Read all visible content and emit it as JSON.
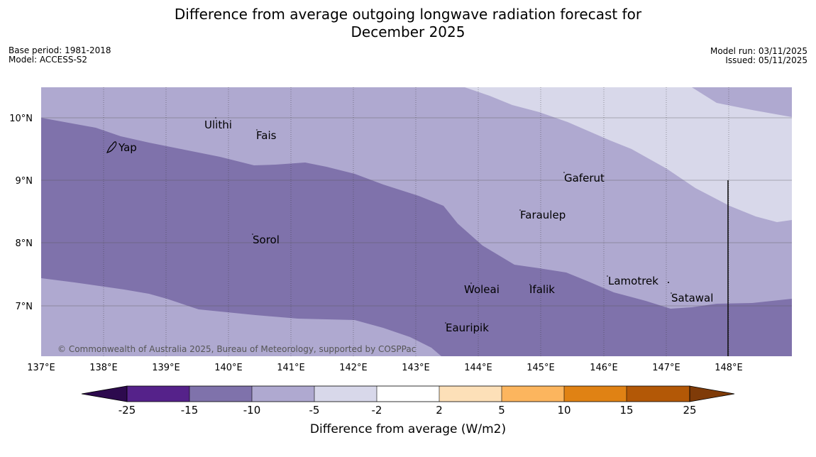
{
  "title_line1": "Difference from average outgoing longwave radiation forecast for",
  "title_line2": "December 2025",
  "base_period": "Base period: 1981-2018",
  "model": "Model: ACCESS-S2",
  "model_run": "Model run: 03/11/2025",
  "issued": "Issued: 05/11/2025",
  "credit": "© Commonwealth of Australia 2025, Bureau of Meteorology, supported by COSPPac",
  "lat_labels": [
    "10°N",
    "9°N",
    "8°N",
    "7°N"
  ],
  "lon_labels": [
    "137°E",
    "138°E",
    "139°E",
    "140°E",
    "141°E",
    "142°E",
    "143°E",
    "144°E",
    "145°E",
    "146°E",
    "147°E",
    "148°E"
  ],
  "places": {
    "yap": "Yap",
    "ulithi": "Ulithi",
    "fais": "Fais",
    "gaferut": "Gaferut",
    "faraulep": "Faraulep",
    "sorol": "Sorol",
    "lamotrek": "Lamotrek",
    "woleai": "Woleai",
    "ifalik": "Ifalik",
    "satawal": "Satawal",
    "eauripik": "Eauripik"
  },
  "colorbar": {
    "label": "Difference from average (W/m2)",
    "ticks": [
      "-25",
      "-15",
      "-10",
      "-5",
      "-2",
      "2",
      "5",
      "10",
      "15",
      "25"
    ],
    "colors": {
      "below_min": "#2d0a4e",
      "c1": "#55228a",
      "c2": "#7f72ab",
      "c3": "#afa9d0",
      "c4": "#d8d8ea",
      "c5": "#ffffff",
      "c6": "#fde0b8",
      "c7": "#fcb55e",
      "c8": "#e08214",
      "c9": "#b35806",
      "above_max": "#7f3b08"
    }
  }
}
